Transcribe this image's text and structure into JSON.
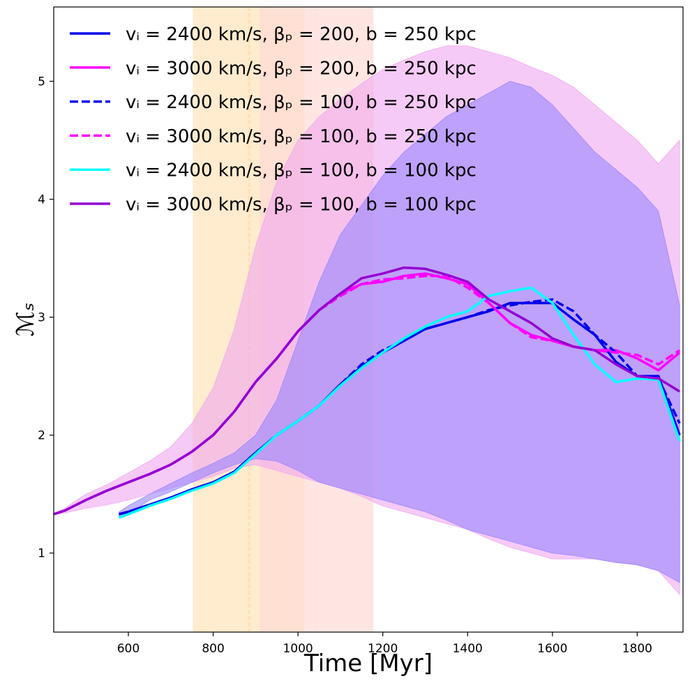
{
  "chart_data": {
    "type": "line",
    "xlabel": "Time [Myr]",
    "ylabel": "ℳₛ",
    "xlim": [
      424,
      1908
    ],
    "ylim": [
      0.33,
      5.63
    ],
    "xticks": [
      600,
      800,
      1000,
      1200,
      1400,
      1600,
      1800
    ],
    "yticks": [
      1,
      2,
      3,
      4,
      5
    ],
    "legend": "upper left",
    "spans": [
      {
        "x0": 752,
        "x1": 1015,
        "color": "#ffe2b8"
      },
      {
        "x0": 910,
        "x1": 1178,
        "color": "#ffdcd6"
      }
    ],
    "vlines": [
      {
        "x": 885,
        "color": "#ffd79a"
      },
      {
        "x": 1043,
        "color": "#ffe0e0"
      }
    ],
    "bands": [
      {
        "color": "#f0a6f0",
        "x": [
          424,
          450,
          500,
          550,
          600,
          650,
          700,
          750,
          800,
          850,
          900,
          950,
          1000,
          1050,
          1100,
          1150,
          1200,
          1250,
          1300,
          1350,
          1400,
          1450,
          1500,
          1550,
          1600,
          1650,
          1700,
          1750,
          1800,
          1850,
          1900
        ],
        "upper": [
          1.33,
          1.38,
          1.5,
          1.58,
          1.68,
          1.78,
          1.9,
          2.1,
          2.4,
          2.9,
          3.6,
          4.15,
          4.5,
          4.7,
          4.85,
          4.98,
          5.1,
          5.18,
          5.25,
          5.3,
          5.3,
          5.25,
          5.2,
          5.12,
          5.05,
          4.95,
          4.8,
          4.65,
          4.5,
          4.3,
          4.5
        ],
        "lower": [
          1.33,
          1.34,
          1.38,
          1.41,
          1.45,
          1.5,
          1.55,
          1.6,
          1.65,
          1.72,
          1.75,
          1.7,
          1.65,
          1.6,
          1.55,
          1.48,
          1.4,
          1.35,
          1.3,
          1.25,
          1.2,
          1.12,
          1.05,
          1.0,
          0.95,
          0.95,
          0.95,
          0.92,
          0.9,
          0.85,
          0.65
        ]
      },
      {
        "color": "#9a86ff",
        "x": [
          578,
          600,
          650,
          700,
          750,
          800,
          850,
          900,
          950,
          1000,
          1050,
          1100,
          1150,
          1200,
          1250,
          1300,
          1350,
          1400,
          1450,
          1500,
          1550,
          1600,
          1650,
          1700,
          1750,
          1800,
          1850,
          1900
        ],
        "upper": [
          1.35,
          1.4,
          1.5,
          1.59,
          1.68,
          1.76,
          1.85,
          2.0,
          2.3,
          2.8,
          3.3,
          3.7,
          3.95,
          4.2,
          4.4,
          4.55,
          4.7,
          4.8,
          4.9,
          5.0,
          4.95,
          4.8,
          4.6,
          4.4,
          4.25,
          4.1,
          3.9,
          3.1
        ],
        "lower": [
          1.3,
          1.33,
          1.45,
          1.52,
          1.6,
          1.68,
          1.75,
          1.8,
          1.78,
          1.7,
          1.6,
          1.55,
          1.5,
          1.45,
          1.4,
          1.35,
          1.28,
          1.2,
          1.15,
          1.1,
          1.05,
          1.0,
          0.98,
          0.95,
          0.92,
          0.9,
          0.85,
          0.75
        ]
      }
    ],
    "series": [
      {
        "name": "vᵢ = 2400 km/s, βₚ = 200, b = 250 kpc",
        "color": "#0000ee",
        "dash": false,
        "x": [
          578,
          600,
          650,
          700,
          750,
          800,
          850,
          900,
          950,
          1000,
          1050,
          1100,
          1150,
          1200,
          1250,
          1300,
          1350,
          1400,
          1450,
          1500,
          1550,
          1600,
          1650,
          1700,
          1750,
          1800,
          1850,
          1900
        ],
        "values": [
          1.33,
          1.35,
          1.41,
          1.47,
          1.54,
          1.6,
          1.69,
          1.85,
          2.0,
          2.12,
          2.25,
          2.43,
          2.58,
          2.7,
          2.8,
          2.9,
          2.95,
          3.0,
          3.05,
          3.12,
          3.12,
          3.12,
          2.98,
          2.85,
          2.62,
          2.5,
          2.5,
          2.0
        ]
      },
      {
        "name": "vᵢ = 3000 km/s, βₚ = 200, b = 250 kpc",
        "color": "#ff00ff",
        "dash": false,
        "x": [
          424,
          450,
          500,
          550,
          600,
          650,
          700,
          750,
          800,
          850,
          900,
          950,
          1000,
          1050,
          1100,
          1150,
          1200,
          1250,
          1300,
          1350,
          1400,
          1450,
          1500,
          1550,
          1600,
          1650,
          1700,
          1750,
          1800,
          1850,
          1900
        ],
        "values": [
          1.33,
          1.36,
          1.45,
          1.53,
          1.6,
          1.67,
          1.75,
          1.86,
          2.0,
          2.2,
          2.45,
          2.65,
          2.88,
          3.06,
          3.2,
          3.28,
          3.3,
          3.35,
          3.37,
          3.33,
          3.28,
          3.12,
          2.95,
          2.85,
          2.8,
          2.75,
          2.72,
          2.72,
          2.65,
          2.55,
          2.7
        ]
      },
      {
        "name": "vᵢ = 2400 km/s, βₚ = 100, b = 250 kpc",
        "color": "#0000ee",
        "dash": true,
        "x": [
          578,
          600,
          650,
          700,
          750,
          800,
          850,
          900,
          950,
          1000,
          1050,
          1100,
          1150,
          1200,
          1250,
          1300,
          1350,
          1400,
          1450,
          1500,
          1550,
          1600,
          1650,
          1700,
          1750,
          1800,
          1850,
          1900
        ],
        "values": [
          1.33,
          1.35,
          1.41,
          1.47,
          1.54,
          1.6,
          1.69,
          1.85,
          2.0,
          2.12,
          2.25,
          2.43,
          2.6,
          2.72,
          2.8,
          2.9,
          2.95,
          3.0,
          3.06,
          3.1,
          3.13,
          3.15,
          3.05,
          2.85,
          2.7,
          2.5,
          2.48,
          2.1
        ]
      },
      {
        "name": "vᵢ = 3000 km/s, βₚ = 100, b = 250 kpc",
        "color": "#ff00ff",
        "dash": true,
        "x": [
          424,
          450,
          500,
          550,
          600,
          650,
          700,
          750,
          800,
          850,
          900,
          950,
          1000,
          1050,
          1100,
          1150,
          1200,
          1250,
          1300,
          1350,
          1400,
          1450,
          1500,
          1550,
          1600,
          1650,
          1700,
          1750,
          1800,
          1850,
          1900
        ],
        "values": [
          1.33,
          1.36,
          1.45,
          1.53,
          1.6,
          1.67,
          1.75,
          1.86,
          2.0,
          2.2,
          2.45,
          2.65,
          2.88,
          3.06,
          3.18,
          3.28,
          3.32,
          3.33,
          3.35,
          3.35,
          3.25,
          3.12,
          2.95,
          2.83,
          2.8,
          2.75,
          2.72,
          2.7,
          2.68,
          2.6,
          2.72
        ]
      },
      {
        "name": "vᵢ = 2400 km/s, βₚ = 100, b = 100 kpc",
        "color": "#00ffff",
        "dash": false,
        "x": [
          578,
          600,
          650,
          700,
          750,
          800,
          850,
          900,
          950,
          1000,
          1050,
          1100,
          1150,
          1200,
          1250,
          1300,
          1350,
          1400,
          1450,
          1500,
          1550,
          1600,
          1650,
          1700,
          1750,
          1800,
          1850,
          1900
        ],
        "values": [
          1.3,
          1.33,
          1.4,
          1.46,
          1.53,
          1.59,
          1.68,
          1.84,
          2.0,
          2.12,
          2.25,
          2.42,
          2.57,
          2.7,
          2.82,
          2.92,
          3.0,
          3.05,
          3.18,
          3.22,
          3.25,
          3.12,
          2.85,
          2.6,
          2.45,
          2.48,
          2.47,
          1.95
        ]
      },
      {
        "name": "vᵢ = 3000 km/s, βₚ = 100, b = 100 kpc",
        "color": "#9400d3",
        "dash": false,
        "x": [
          424,
          450,
          500,
          550,
          600,
          650,
          700,
          750,
          800,
          850,
          900,
          950,
          1000,
          1050,
          1100,
          1150,
          1200,
          1250,
          1300,
          1350,
          1400,
          1450,
          1500,
          1550,
          1600,
          1650,
          1700,
          1750,
          1800,
          1850,
          1900
        ],
        "values": [
          1.33,
          1.36,
          1.45,
          1.53,
          1.6,
          1.67,
          1.75,
          1.86,
          2.0,
          2.2,
          2.45,
          2.65,
          2.88,
          3.06,
          3.2,
          3.33,
          3.37,
          3.42,
          3.41,
          3.36,
          3.3,
          3.15,
          3.05,
          2.95,
          2.82,
          2.75,
          2.72,
          2.6,
          2.5,
          2.48,
          2.37
        ]
      }
    ]
  }
}
